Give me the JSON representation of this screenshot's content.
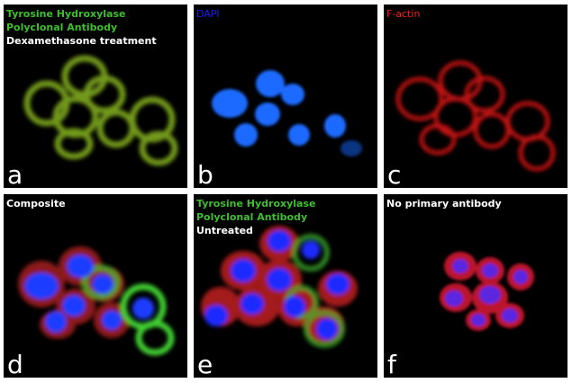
{
  "panels": [
    {
      "letter": "a",
      "lines": [
        "Tyrosine Hydroxylase",
        "Polyclonal Antibody",
        "Dexamethasone treatment"
      ],
      "channel": "tyrosine-hydroxylase",
      "color": "#9acd32"
    },
    {
      "letter": "b",
      "lines": [
        "DAPI"
      ],
      "channel": "dapi",
      "color": "#1a5cff"
    },
    {
      "letter": "c",
      "lines": [
        "F-actin"
      ],
      "channel": "f-actin",
      "color": "#ff1a1a"
    },
    {
      "letter": "d",
      "lines": [
        "Composite"
      ],
      "channel": "composite"
    },
    {
      "letter": "e",
      "lines": [
        "Tyrosine Hydroxylase",
        "Polyclonal Antibody",
        "Untreated"
      ],
      "channel": "composite-untreated"
    },
    {
      "letter": "f",
      "lines": [
        "No primary antibody"
      ],
      "channel": "negative-control"
    }
  ]
}
